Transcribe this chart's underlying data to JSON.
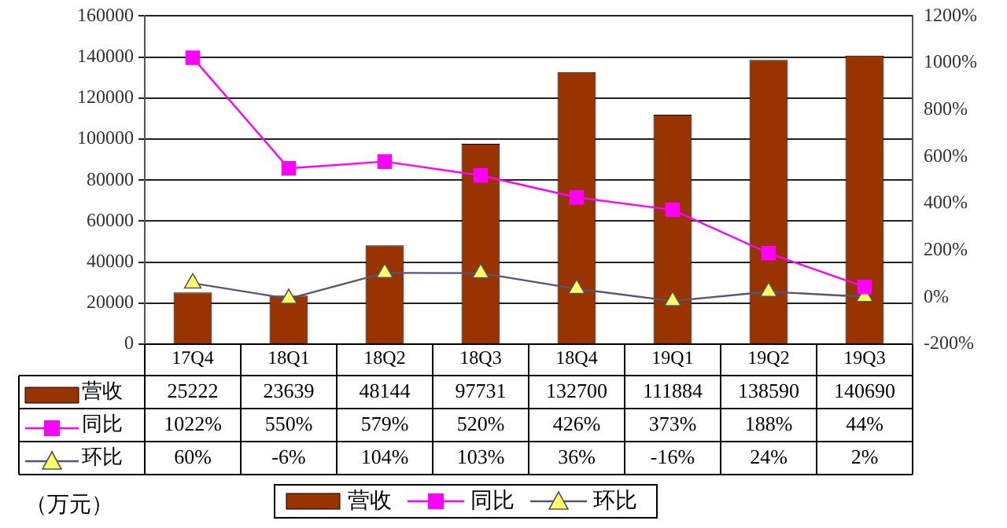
{
  "chart_data": {
    "type": "bar",
    "categories": [
      "17Q4",
      "18Q1",
      "18Q2",
      "18Q3",
      "18Q4",
      "19Q1",
      "19Q2",
      "19Q3"
    ],
    "series": [
      {
        "name": "营收",
        "type": "bar",
        "color": "#993300",
        "values": [
          25222,
          23639,
          48144,
          97731,
          132700,
          111884,
          138590,
          140690
        ],
        "value_labels": [
          "25222",
          "23639",
          "48144",
          "97731",
          "132700",
          "111884",
          "138590",
          "140690"
        ]
      },
      {
        "name": "同比",
        "type": "line",
        "axis": "y2",
        "color": "#ff00ff",
        "marker": "square",
        "values": [
          1022,
          550,
          579,
          520,
          426,
          373,
          188,
          44
        ],
        "value_labels": [
          "1022%",
          "550%",
          "579%",
          "520%",
          "426%",
          "373%",
          "188%",
          "44%"
        ]
      },
      {
        "name": "环比",
        "type": "line",
        "axis": "y2",
        "color": "#555577",
        "marker": "triangle",
        "values": [
          60,
          -6,
          104,
          103,
          36,
          -16,
          24,
          2
        ],
        "value_labels": [
          "60%",
          "-6%",
          "104%",
          "103%",
          "36%",
          "-16%",
          "24%",
          "2%"
        ]
      }
    ],
    "ylim": [
      0,
      160000
    ],
    "yticks": [
      0,
      20000,
      40000,
      60000,
      80000,
      100000,
      120000,
      140000,
      160000
    ],
    "y2lim": [
      -200,
      1200
    ],
    "y2ticks": [
      {
        "value": -200,
        "label": "-200%"
      },
      {
        "value": 0,
        "label": "0%"
      },
      {
        "value": 200,
        "label": "200%"
      },
      {
        "value": 400,
        "label": "400%"
      },
      {
        "value": 600,
        "label": "600%"
      },
      {
        "value": 800,
        "label": "800%"
      },
      {
        "value": 1000,
        "label": "1000%"
      },
      {
        "value": 1200,
        "label": "1200%"
      }
    ],
    "grid": "y",
    "legend": "bottom",
    "annotations": [
      "（万元）"
    ]
  }
}
